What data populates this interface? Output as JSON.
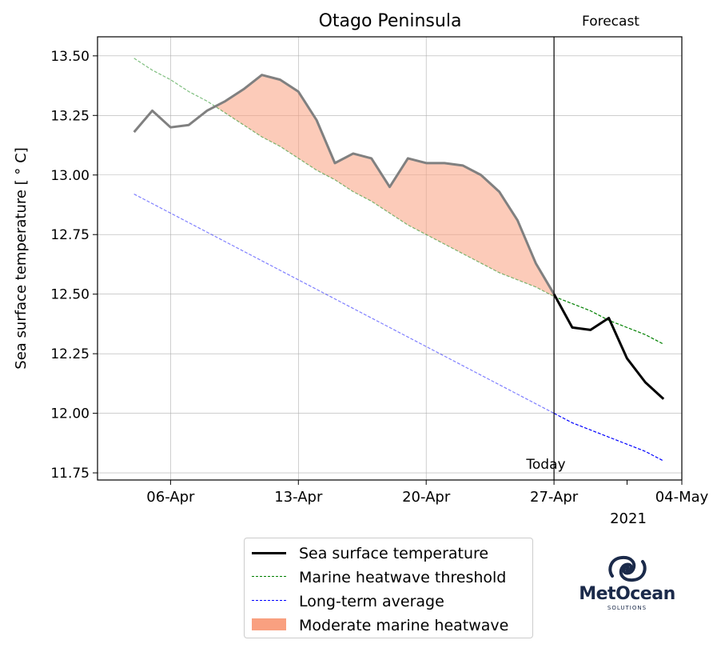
{
  "chart_data": {
    "type": "line",
    "title": "Otago Peninsula",
    "xlabel": "",
    "ylabel": "Sea surface temperature [$^\\circ$C]",
    "ylabel_display": "Sea surface temperature [ ° C]",
    "ylim": [
      11.72,
      13.58
    ],
    "xlim": [
      "2021-04-02",
      "2021-05-04"
    ],
    "x_tick_labels": [
      "06-Apr",
      "13-Apr",
      "20-Apr",
      "27-Apr",
      "04-May"
    ],
    "x_tick_dates": [
      "2021-04-06",
      "2021-04-13",
      "2021-04-20",
      "2021-04-27",
      "2021-05-04"
    ],
    "x_year_label": "2021",
    "y_ticks": [
      11.75,
      12.0,
      12.25,
      12.5,
      12.75,
      13.0,
      13.25,
      13.5
    ],
    "y_tick_labels": [
      "11.75",
      "12.00",
      "12.25",
      "12.50",
      "12.75",
      "13.00",
      "13.25",
      "13.50"
    ],
    "grid": true,
    "legend_placement": "bottom-center",
    "today": "2021-04-27",
    "today_label": "Today",
    "forecast_label": "Forecast",
    "dates": [
      "2021-04-04",
      "2021-04-05",
      "2021-04-06",
      "2021-04-07",
      "2021-04-08",
      "2021-04-09",
      "2021-04-10",
      "2021-04-11",
      "2021-04-12",
      "2021-04-13",
      "2021-04-14",
      "2021-04-15",
      "2021-04-16",
      "2021-04-17",
      "2021-04-18",
      "2021-04-19",
      "2021-04-20",
      "2021-04-21",
      "2021-04-22",
      "2021-04-23",
      "2021-04-24",
      "2021-04-25",
      "2021-04-26",
      "2021-04-27",
      "2021-04-28",
      "2021-04-29",
      "2021-04-30",
      "2021-05-01",
      "2021-05-02",
      "2021-05-03"
    ],
    "series": [
      {
        "name": "Sea surface temperature",
        "color": "#000000",
        "values": [
          13.18,
          13.27,
          13.2,
          13.21,
          13.27,
          13.31,
          13.36,
          13.42,
          13.4,
          13.35,
          13.23,
          13.05,
          13.09,
          13.07,
          12.95,
          13.07,
          13.05,
          13.05,
          13.04,
          13.0,
          12.93,
          12.81,
          12.63,
          12.5,
          12.36,
          12.35,
          12.4,
          12.23,
          12.13,
          12.06
        ]
      },
      {
        "name": "Marine heatwave threshold",
        "color": "#008000",
        "values": [
          13.49,
          13.44,
          13.4,
          13.35,
          13.31,
          13.26,
          13.21,
          13.16,
          13.12,
          13.07,
          13.02,
          12.98,
          12.93,
          12.89,
          12.84,
          12.79,
          12.75,
          12.71,
          12.67,
          12.63,
          12.59,
          12.56,
          12.53,
          12.49,
          12.46,
          12.43,
          12.39,
          12.36,
          12.33,
          12.29
        ]
      },
      {
        "name": "Long-term average",
        "color": "#0000ff",
        "values": [
          12.92,
          12.88,
          12.84,
          12.8,
          12.76,
          12.72,
          12.68,
          12.64,
          12.6,
          12.56,
          12.52,
          12.48,
          12.44,
          12.4,
          12.36,
          12.32,
          12.28,
          12.24,
          12.2,
          12.16,
          12.12,
          12.08,
          12.04,
          12.0,
          11.96,
          11.93,
          11.9,
          11.87,
          11.84,
          11.8
        ]
      },
      {
        "name": "Moderate marine heatwave",
        "color": "#f9a080",
        "type": "fill_between",
        "between": [
          "Sea surface temperature",
          "Marine heatwave threshold"
        ]
      }
    ]
  },
  "legend": {
    "items": [
      {
        "label": "Sea surface temperature",
        "color": "#000000",
        "style": "solid"
      },
      {
        "label": "Marine heatwave threshold",
        "color": "#008000",
        "style": "dashed"
      },
      {
        "label": "Long-term average",
        "color": "#0000ff",
        "style": "dashed"
      },
      {
        "label": "Moderate marine heatwave",
        "color": "#f9a080",
        "style": "patch"
      }
    ]
  },
  "logo": {
    "name": "MetOcean",
    "sub": "SOLUTIONS",
    "color": "#1b2a4a"
  }
}
